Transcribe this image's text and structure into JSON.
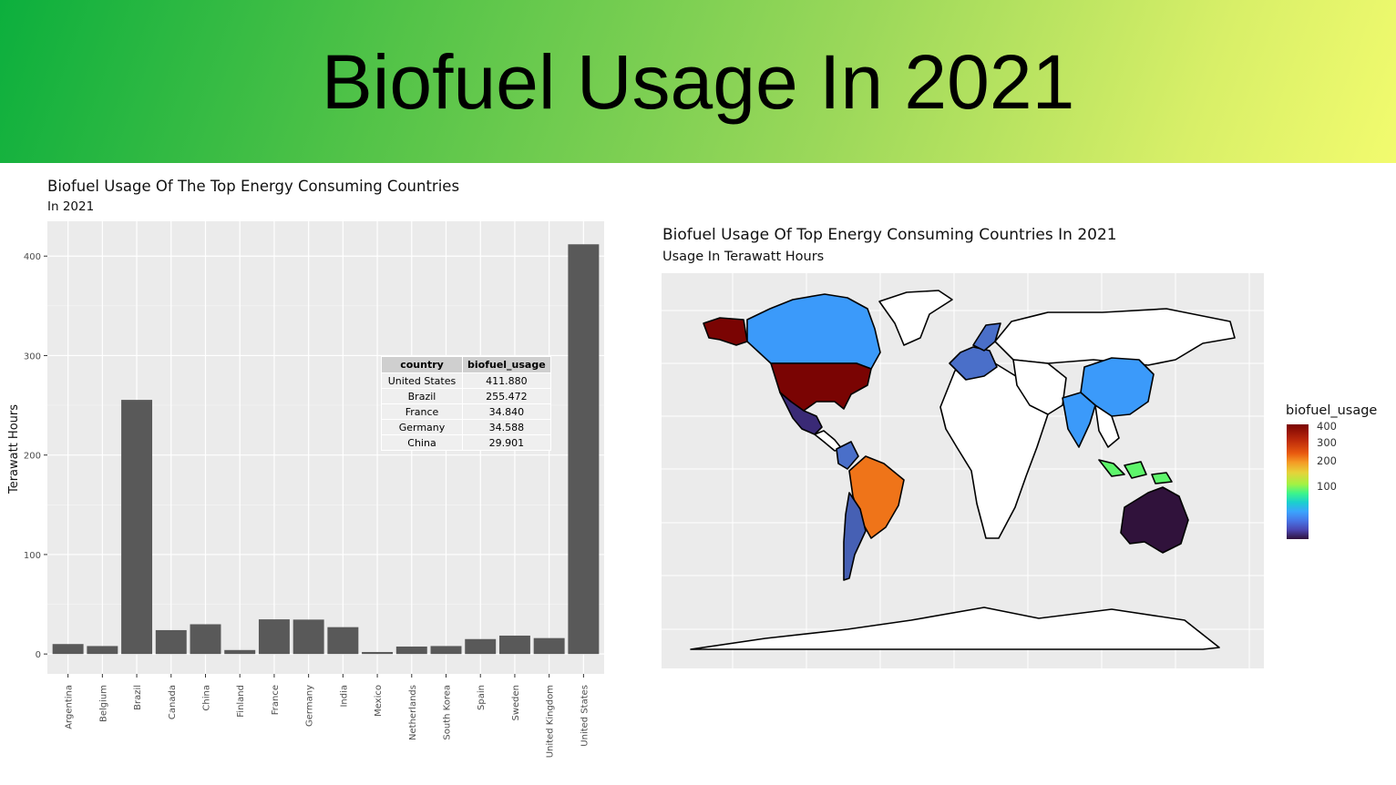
{
  "slide": {
    "title": "Biofuel Usage In 2021",
    "header_gradient": [
      "#0caf3d",
      "#f2fb6e"
    ]
  },
  "chart_data": [
    {
      "type": "bar",
      "title": "Biofuel Usage Of The Top Energy Consuming Countries",
      "subtitle": "In 2021",
      "xlabel": "",
      "ylabel": "Terawatt Hours",
      "ylim": [
        -20,
        435
      ],
      "yticks": [
        0,
        100,
        200,
        300,
        400
      ],
      "categories": [
        "Argentina",
        "Belgium",
        "Brazil",
        "Canada",
        "China",
        "Finland",
        "France",
        "Germany",
        "India",
        "Mexico",
        "Netherlands",
        "South Korea",
        "Spain",
        "Sweden",
        "United Kingdom",
        "United States"
      ],
      "values": [
        10,
        8,
        255.472,
        24,
        29.901,
        4,
        34.84,
        34.588,
        27,
        2,
        7.5,
        8,
        15,
        18.5,
        16,
        411.88
      ],
      "bar_color": "#595959",
      "grid": true,
      "table": {
        "headers": [
          "country",
          "biofuel_usage"
        ],
        "rows": [
          [
            "United States",
            "411.880"
          ],
          [
            "Brazil",
            "255.472"
          ],
          [
            "France",
            "34.840"
          ],
          [
            "Germany",
            "34.588"
          ],
          [
            "China",
            "29.901"
          ]
        ]
      }
    },
    {
      "type": "heatmap",
      "title": "Biofuel Usage Of Top Energy Consuming Countries In 2021",
      "subtitle": "Usage In Terawatt Hours",
      "legend": {
        "title": "biofuel_usage",
        "ticks": [
          "400",
          "300",
          "200",
          "100"
        ],
        "placement": "right"
      },
      "regions": {
        "United States": "#7a0403",
        "Brazil": "#ef7419",
        "Canada": "#3b9afa",
        "China": "#3b9afa",
        "India": "#3b9afa",
        "Mexico": "#3a2a76",
        "Argentina": "#4660b4",
        "Indonesia": "#5ef56b",
        "Australia": "#30123b",
        "Europe": "#4a6fc9",
        "Other": "#ffffff"
      }
    }
  ]
}
